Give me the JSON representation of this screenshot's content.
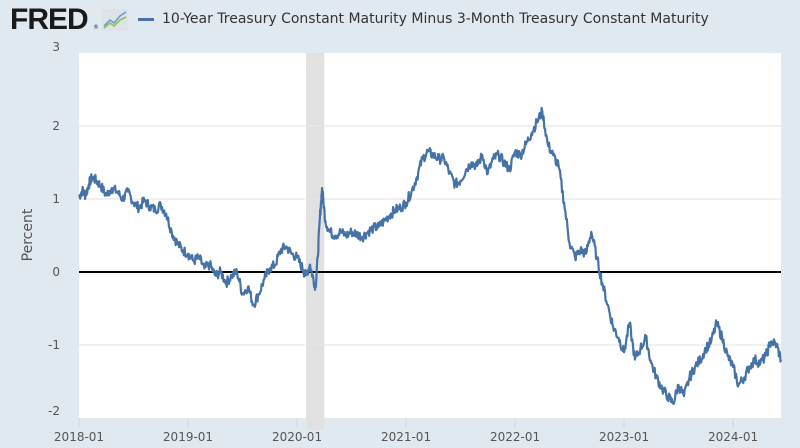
{
  "header": {
    "logo_text": "FRED",
    "logo_reg": "®",
    "logo_icon": "chart-line-icon",
    "legend_series": "10-Year Treasury Constant Maturity Minus 3-Month Treasury Constant Maturity"
  },
  "colors": {
    "series": "#4572a7",
    "background": "#e1e9f0",
    "plot": "#ffffff",
    "recession": "#e1e1e1",
    "zero_line": "#000000",
    "grid": "#e6e6e6"
  },
  "chart_data": {
    "type": "line",
    "title": "10-Year Treasury Constant Maturity Minus 3-Month Treasury Constant Maturity",
    "xlabel": "",
    "ylabel": "Percent",
    "ylim": [
      -2,
      3
    ],
    "xlim": [
      "2018-01",
      "2024-06"
    ],
    "grid": true,
    "legend": "top-left",
    "yticks": [
      "3",
      "2",
      "1",
      "0",
      "-1",
      "-2"
    ],
    "yticks_values": [
      3,
      2,
      1,
      0,
      -1,
      -2
    ],
    "xticks": [
      "2018-01",
      "2019-01",
      "2020-01",
      "2021-01",
      "2022-01",
      "2023-01",
      "2024-01"
    ],
    "reference_line": 0,
    "recession_shading": [
      {
        "start": "2020-02",
        "end": "2020-04"
      }
    ],
    "series": [
      {
        "name": "10-Year Treasury Constant Maturity Minus 3-Month Treasury Constant Maturity",
        "x": [
          2018.0,
          2018.03,
          2018.06,
          2018.09,
          2018.12,
          2018.16,
          2018.2,
          2018.25,
          2018.3,
          2018.35,
          2018.4,
          2018.45,
          2018.5,
          2018.55,
          2018.6,
          2018.65,
          2018.7,
          2018.75,
          2018.8,
          2018.85,
          2018.9,
          2018.95,
          2019.0,
          2019.05,
          2019.1,
          2019.15,
          2019.2,
          2019.25,
          2019.3,
          2019.35,
          2019.4,
          2019.45,
          2019.5,
          2019.55,
          2019.6,
          2019.65,
          2019.7,
          2019.75,
          2019.8,
          2019.85,
          2019.9,
          2019.95,
          2020.0,
          2020.05,
          2020.08,
          2020.12,
          2020.15,
          2020.17,
          2020.19,
          2020.21,
          2020.23,
          2020.26,
          2020.3,
          2020.35,
          2020.4,
          2020.45,
          2020.5,
          2020.55,
          2020.6,
          2020.65,
          2020.7,
          2020.75,
          2020.8,
          2020.85,
          2020.9,
          2020.95,
          2021.0,
          2021.05,
          2021.1,
          2021.15,
          2021.2,
          2021.25,
          2021.3,
          2021.35,
          2021.4,
          2021.45,
          2021.5,
          2021.55,
          2021.6,
          2021.65,
          2021.7,
          2021.75,
          2021.8,
          2021.85,
          2021.9,
          2021.95,
          2022.0,
          2022.05,
          2022.1,
          2022.15,
          2022.2,
          2022.25,
          2022.3,
          2022.35,
          2022.4,
          2022.45,
          2022.5,
          2022.55,
          2022.6,
          2022.65,
          2022.7,
          2022.75,
          2022.8,
          2022.85,
          2022.9,
          2022.95,
          2023.0,
          2023.05,
          2023.1,
          2023.15,
          2023.2,
          2023.25,
          2023.3,
          2023.35,
          2023.4,
          2023.45,
          2023.5,
          2023.55,
          2023.6,
          2023.65,
          2023.7,
          2023.75,
          2023.8,
          2023.85,
          2023.9,
          2023.95,
          2024.0,
          2024.05,
          2024.1,
          2024.15,
          2024.2,
          2024.25,
          2024.3,
          2024.35,
          2024.4,
          2024.44
        ],
        "values": [
          1.02,
          1.12,
          1.05,
          1.2,
          1.3,
          1.25,
          1.18,
          1.05,
          1.15,
          1.1,
          1.0,
          1.1,
          0.95,
          0.88,
          0.98,
          0.9,
          0.85,
          0.92,
          0.8,
          0.55,
          0.4,
          0.3,
          0.25,
          0.15,
          0.2,
          0.05,
          0.1,
          -0.05,
          0.0,
          -0.15,
          -0.05,
          0.0,
          -0.3,
          -0.2,
          -0.45,
          -0.3,
          -0.1,
          0.05,
          0.1,
          0.3,
          0.35,
          0.25,
          0.2,
          0.05,
          -0.05,
          0.1,
          -0.1,
          -0.2,
          0.2,
          0.75,
          1.15,
          0.7,
          0.55,
          0.5,
          0.55,
          0.5,
          0.55,
          0.52,
          0.48,
          0.55,
          0.6,
          0.62,
          0.7,
          0.78,
          0.85,
          0.88,
          0.95,
          1.1,
          1.3,
          1.55,
          1.65,
          1.6,
          1.55,
          1.55,
          1.35,
          1.2,
          1.25,
          1.4,
          1.5,
          1.45,
          1.6,
          1.35,
          1.55,
          1.6,
          1.5,
          1.4,
          1.65,
          1.6,
          1.75,
          1.9,
          2.05,
          2.2,
          1.75,
          1.6,
          1.45,
          0.95,
          0.4,
          0.2,
          0.3,
          0.25,
          0.55,
          0.2,
          -0.15,
          -0.45,
          -0.75,
          -0.9,
          -1.1,
          -0.7,
          -1.2,
          -1.05,
          -0.9,
          -1.25,
          -1.45,
          -1.6,
          -1.7,
          -1.8,
          -1.55,
          -1.7,
          -1.45,
          -1.3,
          -1.2,
          -1.05,
          -0.95,
          -0.7,
          -0.9,
          -1.15,
          -1.3,
          -1.55,
          -1.45,
          -1.3,
          -1.2,
          -1.25,
          -1.15,
          -0.95,
          -1.0,
          -1.2
        ]
      }
    ]
  }
}
